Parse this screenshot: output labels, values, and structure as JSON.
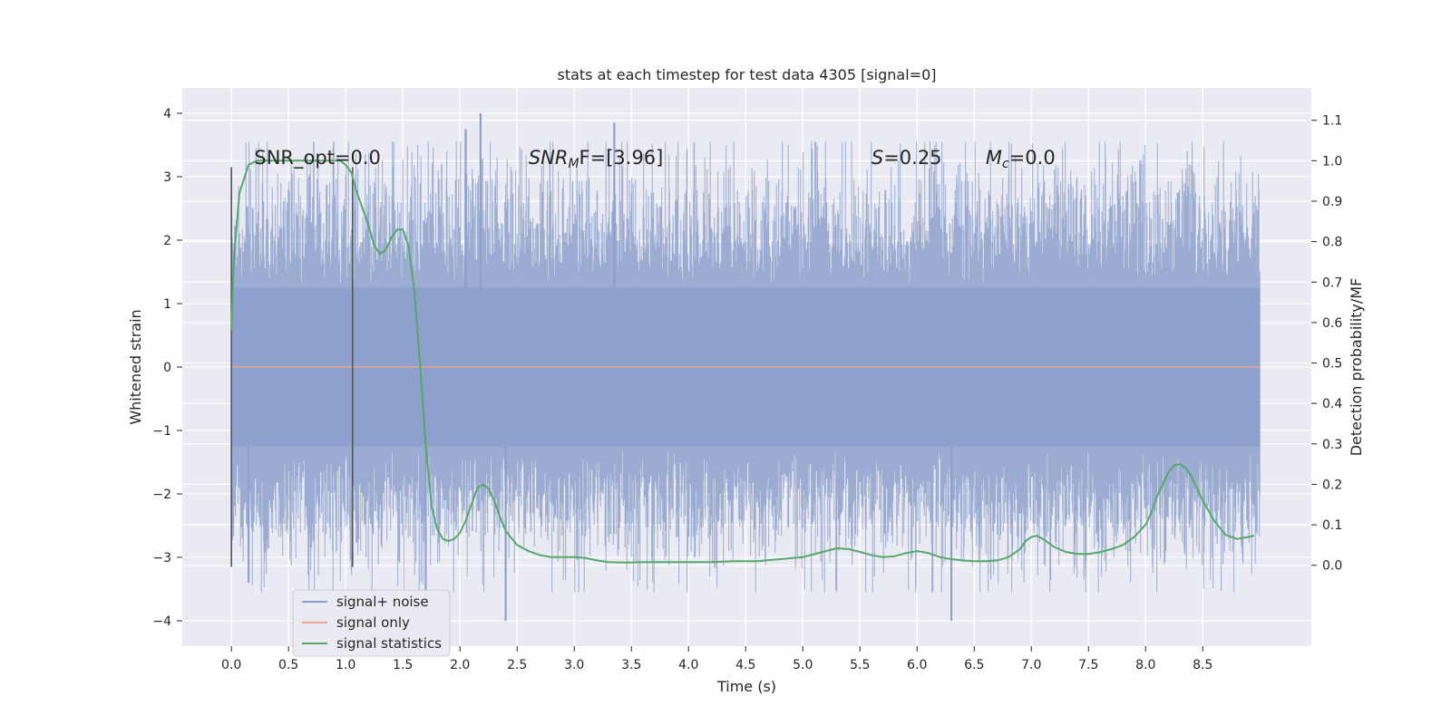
{
  "chart_data": {
    "type": "line",
    "title": "stats at each timestep for test data 4305 [signal=0]",
    "xlabel": "Time (s)",
    "ylabel_left": "Whitened strain",
    "ylabel_right": "Detection probability/MF",
    "xlim": [
      -0.43,
      9.45
    ],
    "ylim_left": [
      -4.4,
      4.4
    ],
    "ylim_right": [
      -0.2,
      1.18
    ],
    "xticks": [
      0.0,
      0.5,
      1.0,
      1.5,
      2.0,
      2.5,
      3.0,
      3.5,
      4.0,
      4.5,
      5.0,
      5.5,
      6.0,
      6.5,
      7.0,
      7.5,
      8.0,
      8.5
    ],
    "xtick_labels": [
      "0.0",
      "0.5",
      "1.0",
      "1.5",
      "2.0",
      "2.5",
      "3.0",
      "3.5",
      "4.0",
      "4.5",
      "5.0",
      "5.5",
      "6.0",
      "6.5",
      "7.0",
      "7.5",
      "8.0",
      "8.5"
    ],
    "yticks_left": [
      4,
      3,
      2,
      1,
      0,
      -1,
      -2,
      -3,
      -4
    ],
    "ytick_labels_left": [
      "4",
      "3",
      "2",
      "1",
      "0",
      "−1",
      "−2",
      "−3",
      "−4"
    ],
    "yticks_right": [
      1.1,
      1.0,
      0.9,
      0.8,
      0.7,
      0.6,
      0.5,
      0.4,
      0.3,
      0.2,
      0.1,
      0.0
    ],
    "ytick_labels_right": [
      "1.1",
      "1.0",
      "0.9",
      "0.8",
      "0.7",
      "0.6",
      "0.5",
      "0.4",
      "0.3",
      "0.2",
      "0.1",
      "0.0"
    ],
    "vlines": [
      {
        "x": 0.0,
        "ymin": -3.15,
        "ymax": 3.15
      },
      {
        "x": 1.06,
        "ymin": -3.15,
        "ymax": 3.15
      }
    ],
    "annotations": [
      {
        "x": 0.2,
        "y": 3.2,
        "prefix": "SNR_opt=0.0",
        "sub": "",
        "suffix": ""
      },
      {
        "x": 2.6,
        "y": 3.2,
        "prefix": "SNR",
        "sub": "M",
        "suffix": "F=[3.96]"
      },
      {
        "x": 5.6,
        "y": 3.2,
        "prefix": "S",
        "sub": "",
        "suffix": "=0.25"
      },
      {
        "x": 6.6,
        "y": 3.2,
        "prefix": "M",
        "sub": "c",
        "suffix": "=0.0"
      }
    ],
    "legend": {
      "location": "lower-left",
      "entries": [
        {
          "label": "signal+ noise",
          "color": "#8da0cb"
        },
        {
          "label": "signal only",
          "color": "#e8a68a"
        },
        {
          "label": "signal statistics",
          "color": "#55a868"
        }
      ]
    },
    "series": [
      {
        "name": "signal+ noise",
        "axis": "left",
        "color": "#8da0cb",
        "style": "dense noise, 0.0-9.0 s",
        "x_start": 0.0,
        "x_end": 9.0,
        "envelope_typical": [
          -2.2,
          2.2
        ],
        "notable_peaks": [
          {
            "x": 2.18,
            "y": 4.0
          },
          {
            "x": 3.35,
            "y": 3.85
          },
          {
            "x": 2.05,
            "y": 3.75
          },
          {
            "x": 6.3,
            "y": -4.0
          },
          {
            "x": 2.4,
            "y": -4.0
          },
          {
            "x": 1.7,
            "y": -3.85
          },
          {
            "x": 0.15,
            "y": -3.4
          }
        ]
      },
      {
        "name": "signal only",
        "axis": "left",
        "color": "#e8a68a",
        "x": [
          0.0,
          9.0
        ],
        "y": [
          0.0,
          0.0
        ]
      },
      {
        "name": "signal statistics",
        "axis": "right",
        "color": "#55a868",
        "x": [
          0.0,
          0.02,
          0.07,
          0.15,
          0.22,
          0.35,
          0.5,
          0.7,
          0.85,
          0.95,
          1.0,
          1.05,
          1.1,
          1.2,
          1.25,
          1.3,
          1.35,
          1.4,
          1.45,
          1.5,
          1.55,
          1.6,
          1.65,
          1.7,
          1.75,
          1.8,
          1.85,
          1.9,
          1.95,
          2.0,
          2.05,
          2.1,
          2.15,
          2.2,
          2.25,
          2.3,
          2.35,
          2.4,
          2.5,
          2.6,
          2.7,
          2.8,
          2.9,
          3.0,
          3.1,
          3.2,
          3.3,
          3.4,
          3.5,
          3.6,
          3.8,
          4.0,
          4.2,
          4.4,
          4.6,
          4.8,
          5.0,
          5.2,
          5.3,
          5.4,
          5.5,
          5.6,
          5.7,
          5.8,
          5.9,
          6.0,
          6.1,
          6.2,
          6.3,
          6.4,
          6.5,
          6.6,
          6.7,
          6.8,
          6.9,
          6.95,
          7.0,
          7.05,
          7.1,
          7.2,
          7.3,
          7.4,
          7.5,
          7.6,
          7.7,
          7.8,
          7.9,
          8.0,
          8.05,
          8.1,
          8.15,
          8.2,
          8.25,
          8.3,
          8.35,
          8.4,
          8.45,
          8.5,
          8.6,
          8.7,
          8.8,
          8.9,
          8.95
        ],
        "y": [
          0.58,
          0.75,
          0.92,
          0.99,
          1.0,
          1.0,
          1.0,
          1.0,
          1.0,
          1.0,
          0.99,
          0.97,
          0.92,
          0.84,
          0.79,
          0.77,
          0.78,
          0.81,
          0.83,
          0.83,
          0.79,
          0.68,
          0.5,
          0.3,
          0.15,
          0.09,
          0.065,
          0.06,
          0.065,
          0.08,
          0.11,
          0.15,
          0.19,
          0.2,
          0.19,
          0.16,
          0.12,
          0.085,
          0.05,
          0.035,
          0.025,
          0.02,
          0.02,
          0.02,
          0.018,
          0.012,
          0.008,
          0.007,
          0.007,
          0.008,
          0.008,
          0.008,
          0.008,
          0.01,
          0.01,
          0.015,
          0.02,
          0.035,
          0.042,
          0.04,
          0.033,
          0.025,
          0.02,
          0.022,
          0.03,
          0.035,
          0.03,
          0.02,
          0.015,
          0.012,
          0.01,
          0.01,
          0.012,
          0.02,
          0.04,
          0.06,
          0.07,
          0.073,
          0.065,
          0.045,
          0.033,
          0.028,
          0.028,
          0.032,
          0.04,
          0.05,
          0.07,
          0.1,
          0.13,
          0.17,
          0.2,
          0.23,
          0.247,
          0.25,
          0.24,
          0.22,
          0.19,
          0.16,
          0.11,
          0.075,
          0.065,
          0.07,
          0.073
        ]
      }
    ]
  }
}
